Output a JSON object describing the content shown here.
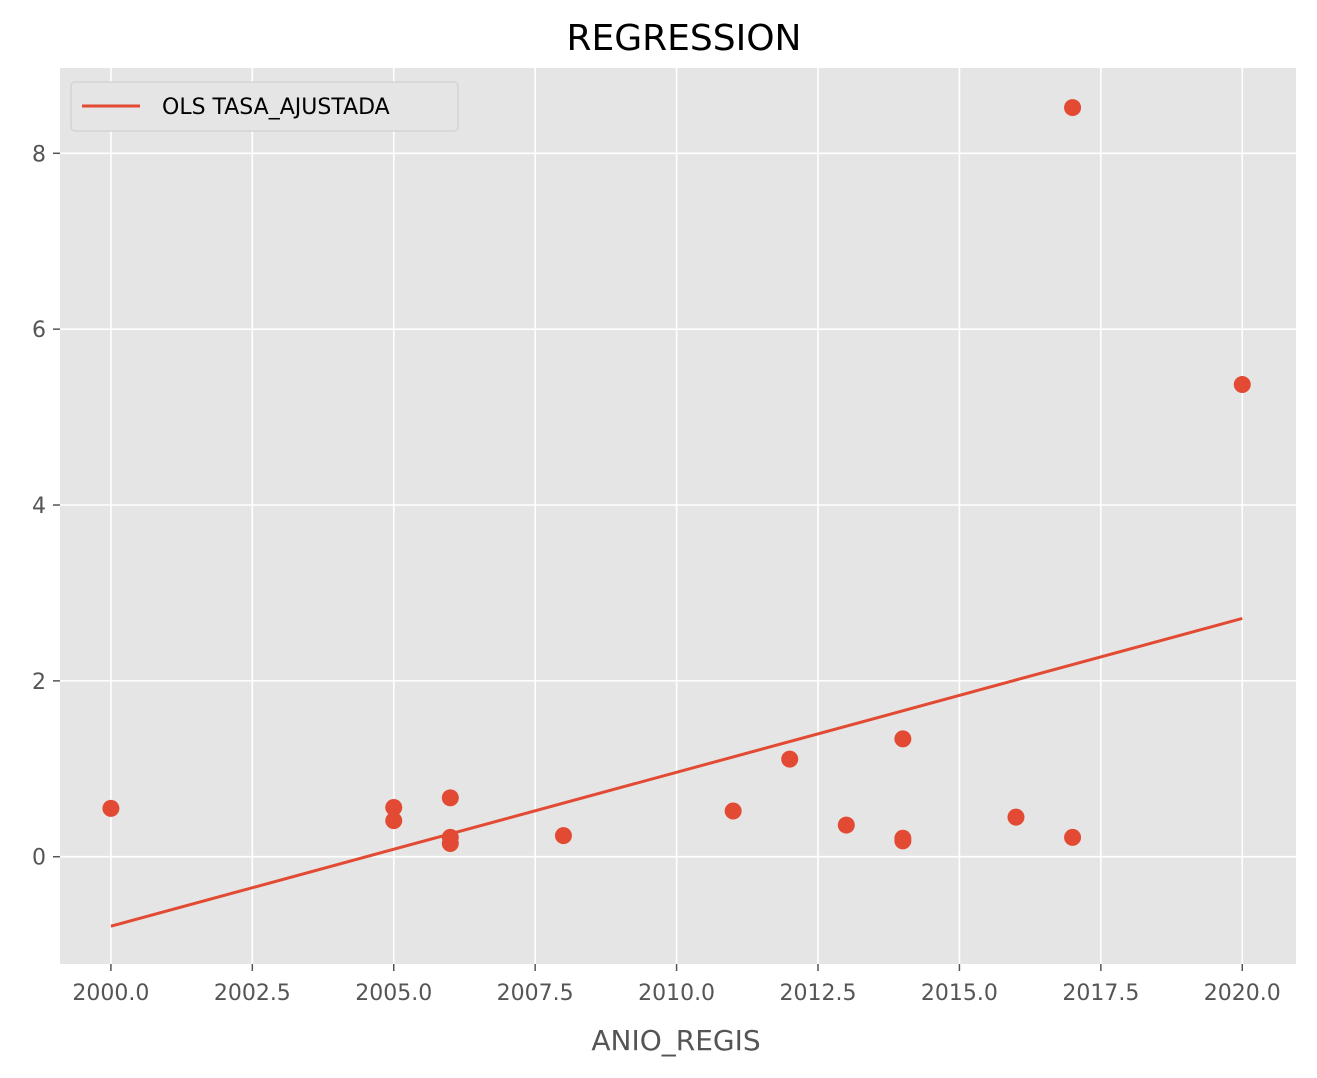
{
  "chart_data": {
    "type": "scatter",
    "title": "REGRESSION",
    "xlabel": "ANIO_REGIS",
    "ylabel": "",
    "xlim": [
      1999.1,
      2020.95
    ],
    "ylim": [
      -1.22,
      8.97
    ],
    "grid": true,
    "legend": {
      "placement": "top-left",
      "entries": [
        "OLS TASA_AJUSTADA"
      ]
    },
    "xticks": [
      2000.0,
      2002.5,
      2005.0,
      2007.5,
      2010.0,
      2012.5,
      2015.0,
      2017.5,
      2020.0
    ],
    "xtick_labels": [
      "2000.0",
      "2002.5",
      "2005.0",
      "2007.5",
      "2010.0",
      "2012.5",
      "2015.0",
      "2017.5",
      "2020.0"
    ],
    "yticks": [
      0,
      2,
      4,
      6,
      8
    ],
    "ytick_labels": [
      "0",
      "2",
      "4",
      "6",
      "8"
    ],
    "points": [
      {
        "x": 2000,
        "y": 0.55
      },
      {
        "x": 2005,
        "y": 0.56
      },
      {
        "x": 2005,
        "y": 0.41
      },
      {
        "x": 2006,
        "y": 0.67
      },
      {
        "x": 2006,
        "y": 0.22
      },
      {
        "x": 2006,
        "y": 0.15
      },
      {
        "x": 2008,
        "y": 0.24
      },
      {
        "x": 2011,
        "y": 0.52
      },
      {
        "x": 2012,
        "y": 1.11
      },
      {
        "x": 2013,
        "y": 0.36
      },
      {
        "x": 2014,
        "y": 1.34
      },
      {
        "x": 2014,
        "y": 0.21
      },
      {
        "x": 2014,
        "y": 0.18
      },
      {
        "x": 2016,
        "y": 0.45
      },
      {
        "x": 2017,
        "y": 8.52
      },
      {
        "x": 2017,
        "y": 0.22
      },
      {
        "x": 2020,
        "y": 5.37
      }
    ],
    "series": [
      {
        "name": "OLS TASA_AJUSTADA",
        "type": "line",
        "x": [
          2000,
          2020
        ],
        "y": [
          -0.79,
          2.71
        ]
      }
    ],
    "colors": {
      "background": "#e5e5e5",
      "grid": "#ffffff",
      "accent": "#e24a33",
      "tick_text": "#555555"
    }
  }
}
